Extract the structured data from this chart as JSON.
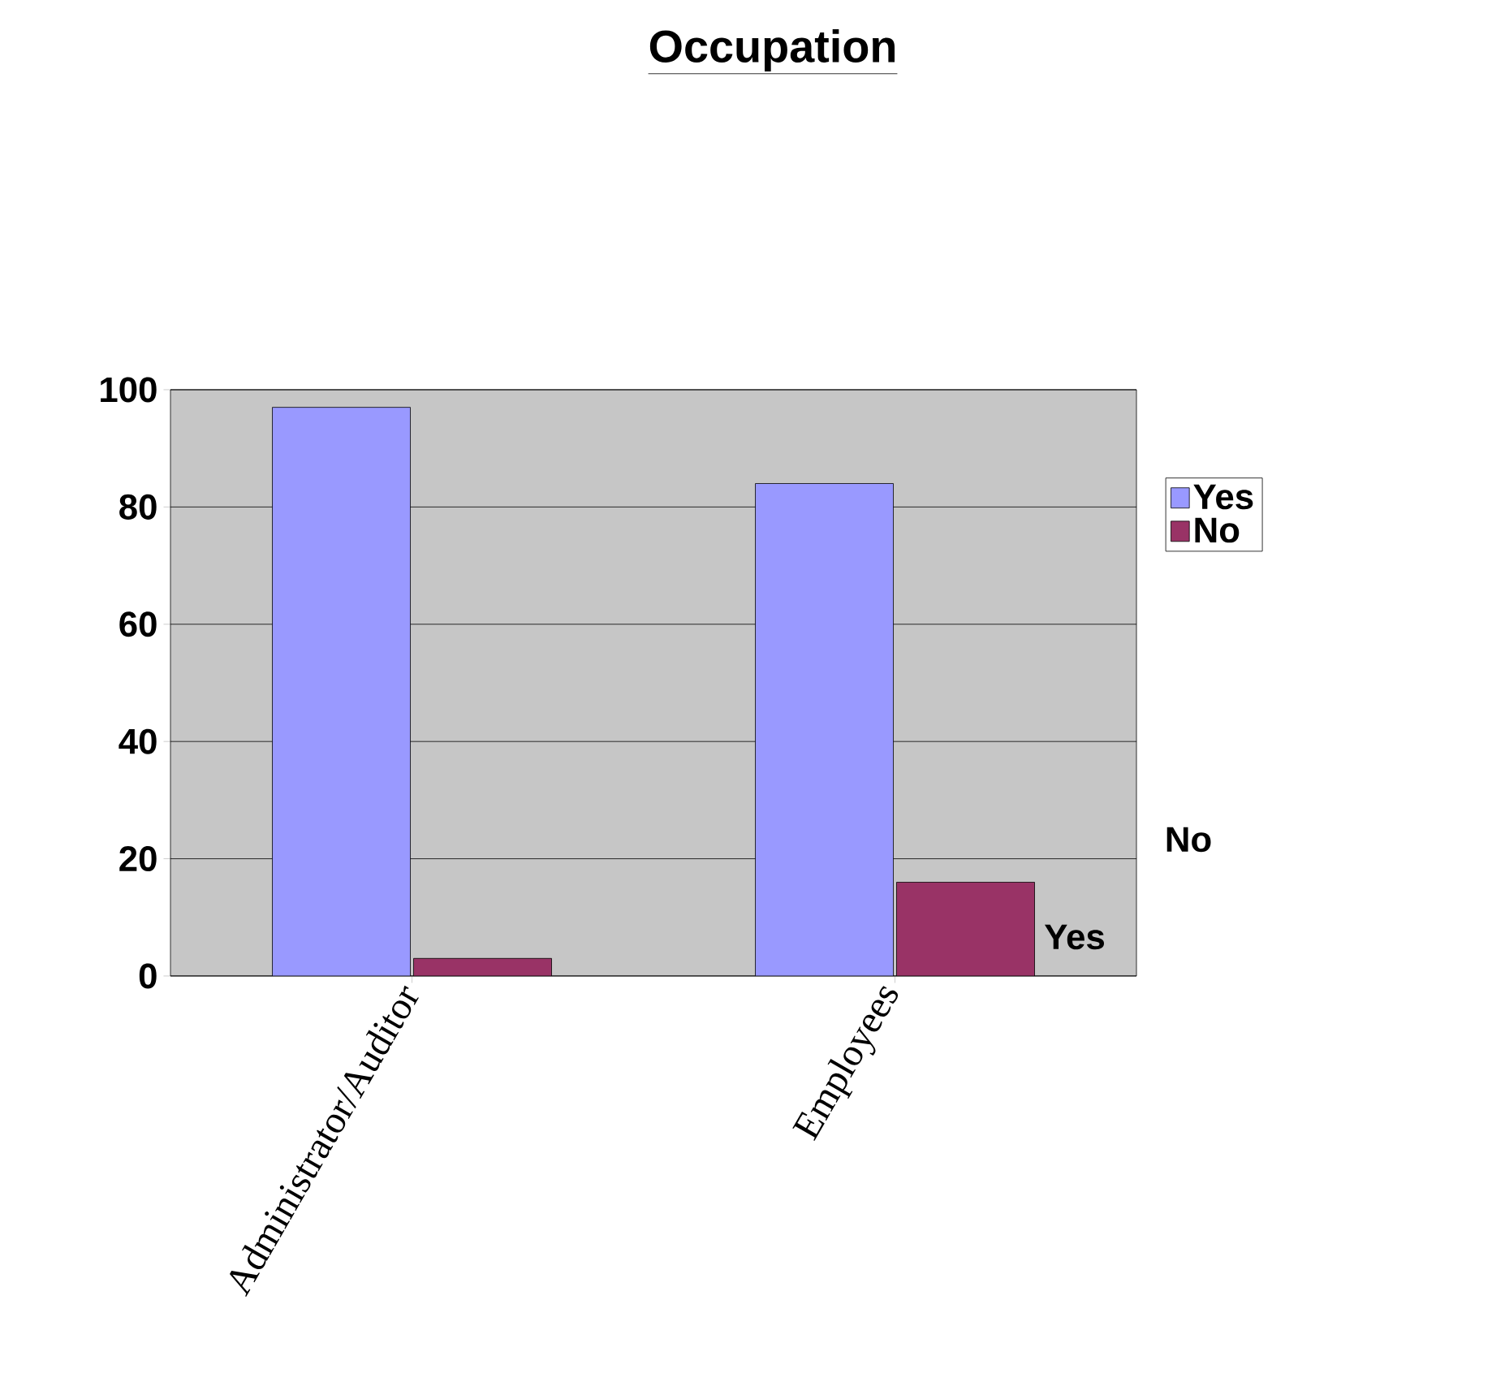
{
  "chart_data": {
    "type": "bar",
    "title": "Occupation",
    "categories": [
      "Administrator/Auditor",
      "Employees"
    ],
    "series": [
      {
        "name": "Yes",
        "color": "#9999ff",
        "values": [
          97,
          84
        ]
      },
      {
        "name": "No",
        "color": "#993366",
        "values": [
          3,
          16
        ]
      }
    ],
    "ylim": [
      0,
      100
    ],
    "yticks": [
      0,
      20,
      40,
      60,
      80,
      100
    ],
    "grid": "y",
    "legend": "right",
    "annotations": [
      "No",
      "Yes"
    ]
  }
}
